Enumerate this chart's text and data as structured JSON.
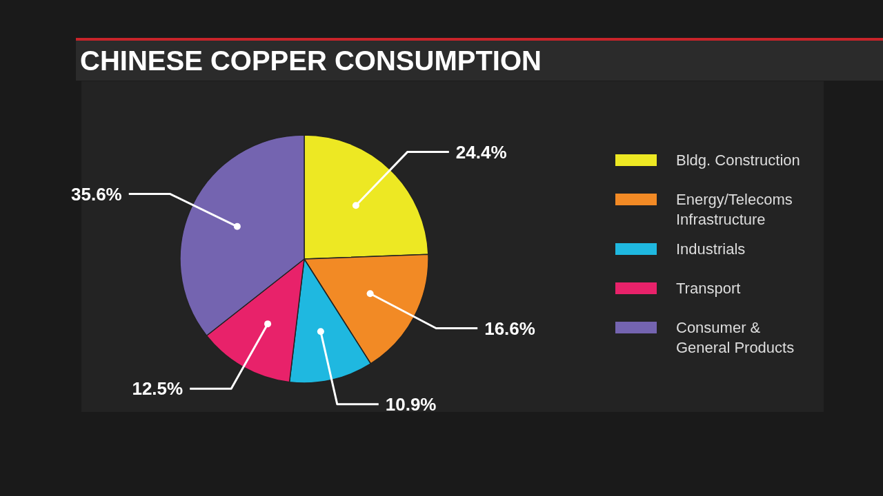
{
  "chart_data": {
    "type": "pie",
    "title": "CHINESE COPPER CONSUMPTION",
    "categories": [
      "Bldg. Construction",
      "Energy/Telecoms\nInfrastructure",
      "Industrials",
      "Transport",
      "Consumer &\nGeneral Products"
    ],
    "values": [
      24.4,
      16.6,
      10.9,
      12.5,
      35.6
    ],
    "colors": [
      "#ede823",
      "#f28a25",
      "#1fb8e0",
      "#e8226a",
      "#7464b0"
    ],
    "value_labels": [
      "24.4%",
      "16.6%",
      "10.9%",
      "12.5%",
      "35.6%"
    ],
    "legend": "right"
  }
}
